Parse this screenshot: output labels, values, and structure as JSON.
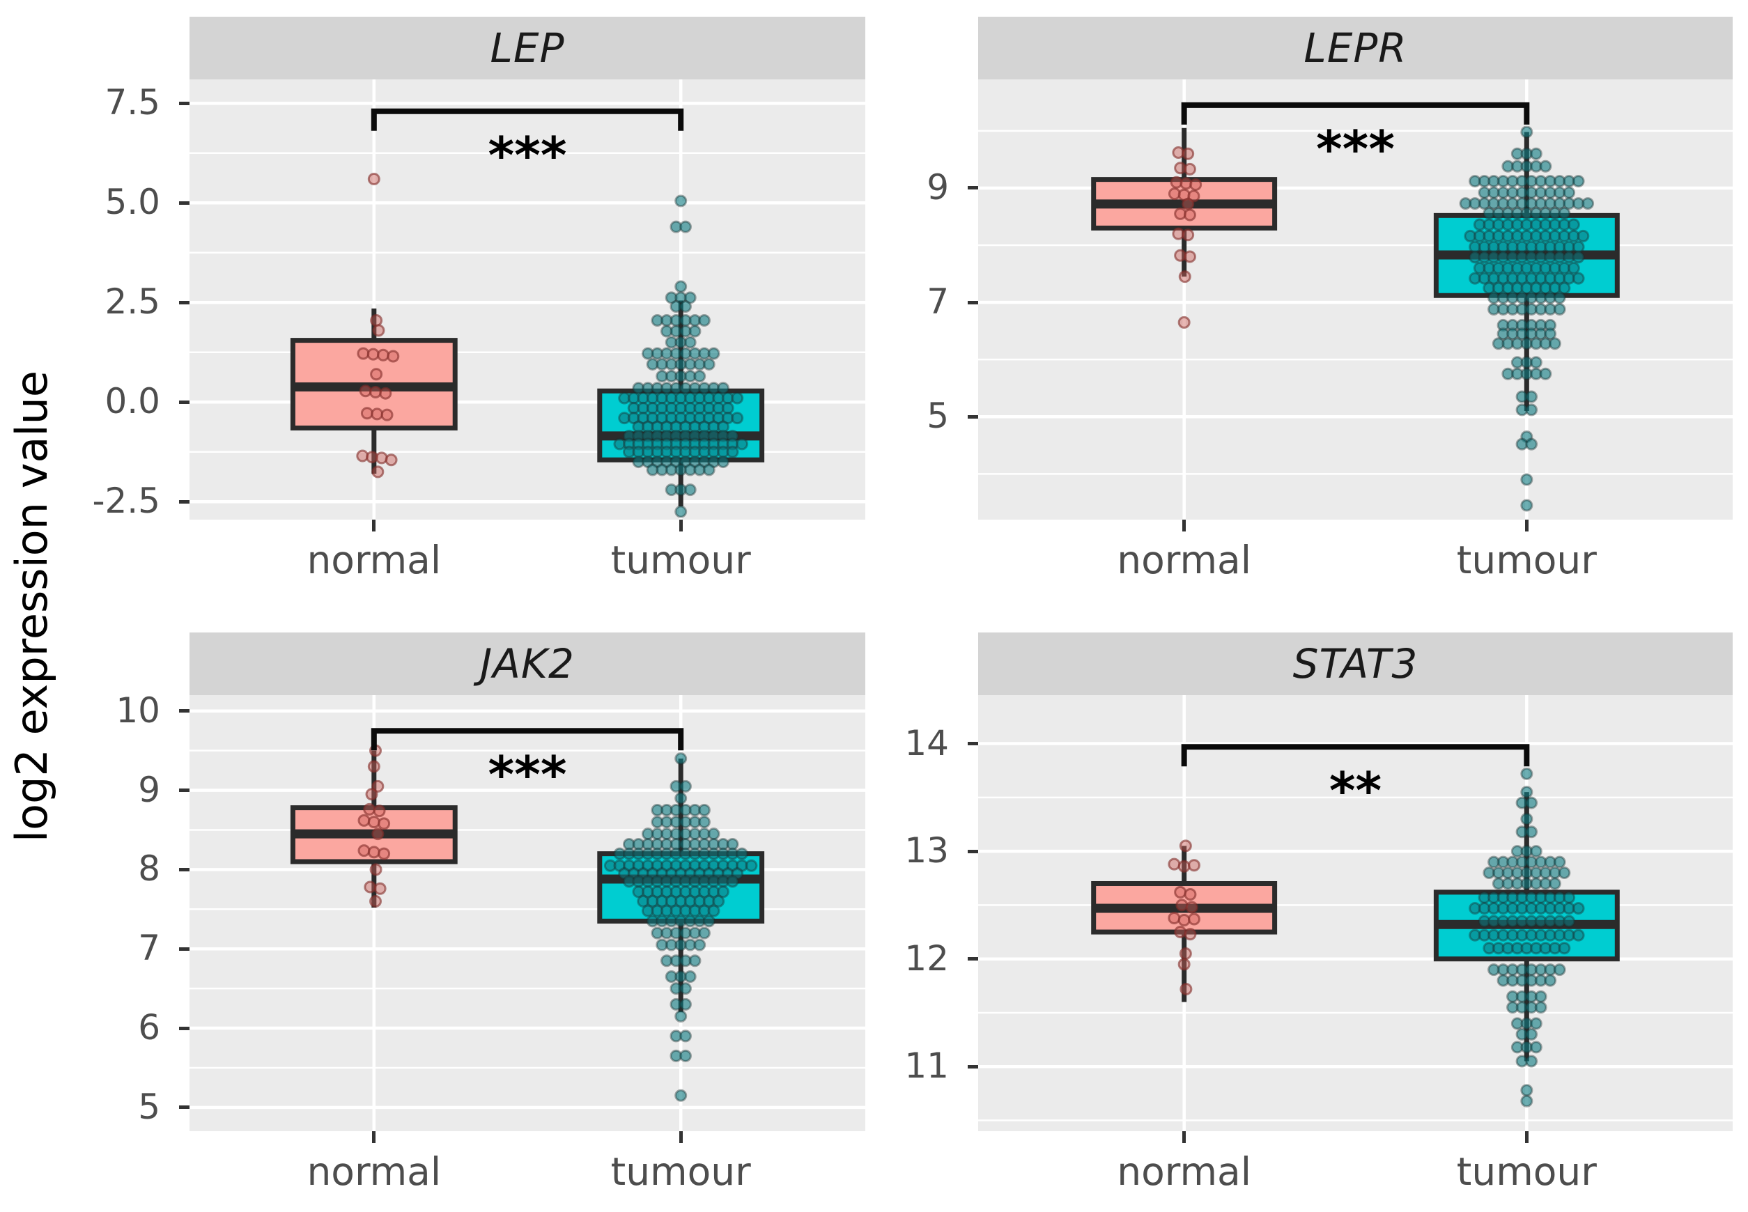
{
  "figure": {
    "y_axis_title": "log2 expression value",
    "x_categories": [
      "normal",
      "tumour"
    ],
    "colors": {
      "normal_fill": "#FBA7A0",
      "tumour_fill": "#00CDD1",
      "normal_point_fill": "rgba(205,95,88,0.45)",
      "normal_point_stroke": "rgba(130,45,42,0.6)",
      "tumour_point_fill": "rgba(12,122,128,0.6)",
      "tumour_point_stroke": "rgba(25,45,45,0.4)",
      "box_stroke": "#2B2B2B",
      "panel_bg": "#EBEBEB",
      "strip_bg": "#D4D4D4",
      "grid": "#FFFFFF",
      "tick_text": "#4D4D4D",
      "bracket": "#0A0A0A"
    }
  },
  "chart_data": [
    {
      "type": "box",
      "gene": "LEP",
      "significance": "***",
      "ylim": [
        -2.95,
        8.1
      ],
      "yticks": [
        {
          "v": 7.5,
          "label": "7.5"
        },
        {
          "v": 5.0,
          "label": "5.0"
        },
        {
          "v": 2.5,
          "label": "2.5"
        },
        {
          "v": 0.0,
          "label": "0.0"
        },
        {
          "v": -2.5,
          "label": "-2.5"
        }
      ],
      "minor": [
        6.25,
        3.75,
        1.25,
        -1.25
      ],
      "bracket_y": 7.3,
      "groups": [
        {
          "name": "normal",
          "box": {
            "q1": -0.65,
            "median": 0.38,
            "q3": 1.55,
            "whisker_low": -1.8,
            "whisker_high": 2.35
          },
          "points": [
            [
              5.6,
              0
            ],
            [
              2.05,
              0.06
            ],
            [
              1.8,
              0.12
            ],
            [
              1.22,
              -0.28
            ],
            [
              1.2,
              -0.02
            ],
            [
              1.18,
              0.24
            ],
            [
              1.15,
              0.5
            ],
            [
              0.7,
              0.06
            ],
            [
              0.28,
              -0.22
            ],
            [
              0.25,
              0.04
            ],
            [
              0.22,
              0.3
            ],
            [
              -0.28,
              -0.18
            ],
            [
              -0.3,
              0.08
            ],
            [
              -0.32,
              0.34
            ],
            [
              -1.35,
              -0.3
            ],
            [
              -1.38,
              -0.05
            ],
            [
              -1.4,
              0.2
            ],
            [
              -1.45,
              0.45
            ],
            [
              -1.75,
              0.1
            ]
          ]
        },
        {
          "name": "tumour",
          "box": {
            "q1": -1.45,
            "median": -0.85,
            "q3": 0.28,
            "whisker_low": -2.62,
            "whisker_high": 2.55
          },
          "swarm": [
            [
              5.05,
              1
            ],
            [
              4.4,
              2
            ],
            [
              2.9,
              1
            ],
            [
              2.62,
              3
            ],
            [
              2.4,
              2
            ],
            [
              2.05,
              6
            ],
            [
              1.78,
              4
            ],
            [
              1.5,
              3
            ],
            [
              1.22,
              8
            ],
            [
              0.95,
              7
            ],
            [
              0.65,
              5
            ],
            [
              0.35,
              10
            ],
            [
              0.1,
              13
            ],
            [
              -0.15,
              11
            ],
            [
              -0.4,
              13
            ],
            [
              -0.62,
              10
            ],
            [
              -0.85,
              12
            ],
            [
              -1.05,
              14
            ],
            [
              -1.25,
              12
            ],
            [
              -1.5,
              10
            ],
            [
              -1.7,
              7
            ],
            [
              -2.2,
              3
            ],
            [
              -2.75,
              1
            ]
          ]
        }
      ]
    },
    {
      "type": "box",
      "gene": "LEPR",
      "significance": "***",
      "ylim": [
        3.2,
        10.9
      ],
      "yticks": [
        {
          "v": 9,
          "label": "9"
        },
        {
          "v": 7,
          "label": "7"
        },
        {
          "v": 5,
          "label": "5"
        }
      ],
      "minor": [
        10,
        8,
        6,
        4
      ],
      "bracket_y": 10.45,
      "groups": [
        {
          "name": "normal",
          "box": {
            "q1": 8.3,
            "median": 8.72,
            "q3": 9.15,
            "whisker_low": 7.45,
            "whisker_high": 10.05
          },
          "points": [
            [
              9.62,
              -0.15
            ],
            [
              9.6,
              0.1
            ],
            [
              9.35,
              -0.1
            ],
            [
              9.33,
              0.15
            ],
            [
              9.1,
              -0.2
            ],
            [
              9.08,
              0.05
            ],
            [
              9.06,
              0.3
            ],
            [
              8.9,
              -0.25
            ],
            [
              8.88,
              0
            ],
            [
              8.86,
              0.25
            ],
            [
              8.72,
              0.1
            ],
            [
              8.55,
              -0.1
            ],
            [
              8.53,
              0.15
            ],
            [
              8.2,
              -0.15
            ],
            [
              8.18,
              0.1
            ],
            [
              7.82,
              -0.1
            ],
            [
              7.8,
              0.15
            ],
            [
              7.45,
              0.02
            ],
            [
              6.65,
              0
            ]
          ]
        },
        {
          "name": "tumour",
          "box": {
            "q1": 7.12,
            "median": 7.83,
            "q3": 8.52,
            "whisker_low": 5.1,
            "whisker_high": 9.98
          },
          "swarm": [
            [
              9.98,
              1
            ],
            [
              9.6,
              3
            ],
            [
              9.38,
              5
            ],
            [
              9.12,
              12
            ],
            [
              8.92,
              10
            ],
            [
              8.73,
              14
            ],
            [
              8.56,
              9
            ],
            [
              8.36,
              11
            ],
            [
              8.16,
              13
            ],
            [
              7.97,
              12
            ],
            [
              7.79,
              12
            ],
            [
              7.6,
              11
            ],
            [
              7.42,
              12
            ],
            [
              7.25,
              9
            ],
            [
              7.08,
              8
            ],
            [
              6.88,
              8
            ],
            [
              6.6,
              6
            ],
            [
              6.45,
              6
            ],
            [
              6.28,
              7
            ],
            [
              5.95,
              3
            ],
            [
              5.75,
              5
            ],
            [
              5.35,
              2
            ],
            [
              5.12,
              2
            ],
            [
              4.65,
              1
            ],
            [
              4.52,
              2
            ],
            [
              3.9,
              1
            ],
            [
              3.45,
              1
            ]
          ]
        }
      ]
    },
    {
      "type": "box",
      "gene": "JAK2",
      "significance": "***",
      "ylim": [
        4.7,
        10.2
      ],
      "yticks": [
        {
          "v": 10,
          "label": "10"
        },
        {
          "v": 9,
          "label": "9"
        },
        {
          "v": 8,
          "label": "8"
        },
        {
          "v": 7,
          "label": "7"
        },
        {
          "v": 6,
          "label": "6"
        },
        {
          "v": 5,
          "label": "5"
        }
      ],
      "minor": [
        9.5,
        8.5,
        7.5,
        6.5,
        5.5
      ],
      "bracket_y": 9.75,
      "groups": [
        {
          "name": "normal",
          "box": {
            "q1": 8.1,
            "median": 8.45,
            "q3": 8.78,
            "whisker_low": 7.52,
            "whisker_high": 9.5
          },
          "points": [
            [
              9.5,
              0.04
            ],
            [
              9.3,
              0
            ],
            [
              9.05,
              0.1
            ],
            [
              8.95,
              -0.06
            ],
            [
              8.76,
              -0.12
            ],
            [
              8.74,
              0.14
            ],
            [
              8.62,
              -0.26
            ],
            [
              8.6,
              0
            ],
            [
              8.58,
              0.26
            ],
            [
              8.45,
              0.1
            ],
            [
              8.24,
              -0.26
            ],
            [
              8.22,
              0
            ],
            [
              8.2,
              0.26
            ],
            [
              8.0,
              0.05
            ],
            [
              7.78,
              -0.1
            ],
            [
              7.76,
              0.16
            ],
            [
              7.6,
              0.04
            ]
          ]
        },
        {
          "name": "tumour",
          "box": {
            "q1": 7.35,
            "median": 7.88,
            "q3": 8.2,
            "whisker_low": 6.2,
            "whisker_high": 9.4
          },
          "swarm": [
            [
              9.4,
              1
            ],
            [
              9.05,
              2
            ],
            [
              8.9,
              1
            ],
            [
              8.75,
              6
            ],
            [
              8.6,
              6
            ],
            [
              8.45,
              8
            ],
            [
              8.32,
              12
            ],
            [
              8.2,
              14
            ],
            [
              8.05,
              16
            ],
            [
              7.95,
              13
            ],
            [
              7.85,
              12
            ],
            [
              7.72,
              10
            ],
            [
              7.6,
              9
            ],
            [
              7.48,
              8
            ],
            [
              7.35,
              7
            ],
            [
              7.2,
              6
            ],
            [
              7.05,
              5
            ],
            [
              6.85,
              4
            ],
            [
              6.65,
              3
            ],
            [
              6.5,
              2
            ],
            [
              6.3,
              2
            ],
            [
              6.15,
              1
            ],
            [
              5.9,
              2
            ],
            [
              5.65,
              2
            ],
            [
              5.15,
              1
            ]
          ]
        }
      ]
    },
    {
      "type": "box",
      "gene": "STAT3",
      "significance": "**",
      "ylim": [
        10.4,
        14.45
      ],
      "yticks": [
        {
          "v": 14,
          "label": "14"
        },
        {
          "v": 13,
          "label": "13"
        },
        {
          "v": 12,
          "label": "12"
        },
        {
          "v": 11,
          "label": "11"
        }
      ],
      "minor": [
        13.5,
        12.5,
        11.5,
        10.5
      ],
      "bracket_y": 13.97,
      "groups": [
        {
          "name": "normal",
          "box": {
            "q1": 12.25,
            "median": 12.47,
            "q3": 12.7,
            "whisker_low": 11.6,
            "whisker_high": 13.05
          },
          "points": [
            [
              13.05,
              0.04
            ],
            [
              12.88,
              -0.26
            ],
            [
              12.86,
              0
            ],
            [
              12.87,
              0.26
            ],
            [
              12.62,
              -0.1
            ],
            [
              12.6,
              0.16
            ],
            [
              12.5,
              -0.06
            ],
            [
              12.48,
              0.2
            ],
            [
              12.38,
              -0.26
            ],
            [
              12.36,
              0
            ],
            [
              12.37,
              0.26
            ],
            [
              12.25,
              -0.1
            ],
            [
              12.23,
              0.16
            ],
            [
              12.05,
              0.04
            ],
            [
              11.95,
              0
            ],
            [
              11.72,
              0.05
            ]
          ]
        },
        {
          "name": "tumour",
          "box": {
            "q1": 12.0,
            "median": 12.32,
            "q3": 12.62,
            "whisker_low": 11.05,
            "whisker_high": 13.55
          },
          "swarm": [
            [
              13.72,
              1
            ],
            [
              13.55,
              1
            ],
            [
              13.45,
              2
            ],
            [
              13.3,
              1
            ],
            [
              13.18,
              2
            ],
            [
              13.0,
              3
            ],
            [
              12.9,
              8
            ],
            [
              12.8,
              9
            ],
            [
              12.7,
              7
            ],
            [
              12.57,
              10
            ],
            [
              12.47,
              12
            ],
            [
              12.35,
              10
            ],
            [
              12.22,
              12
            ],
            [
              12.1,
              9
            ],
            [
              11.9,
              8
            ],
            [
              11.8,
              6
            ],
            [
              11.65,
              4
            ],
            [
              11.55,
              4
            ],
            [
              11.4,
              3
            ],
            [
              11.3,
              2
            ],
            [
              11.18,
              3
            ],
            [
              11.05,
              2
            ],
            [
              10.78,
              1
            ],
            [
              10.68,
              1
            ]
          ]
        }
      ]
    }
  ]
}
